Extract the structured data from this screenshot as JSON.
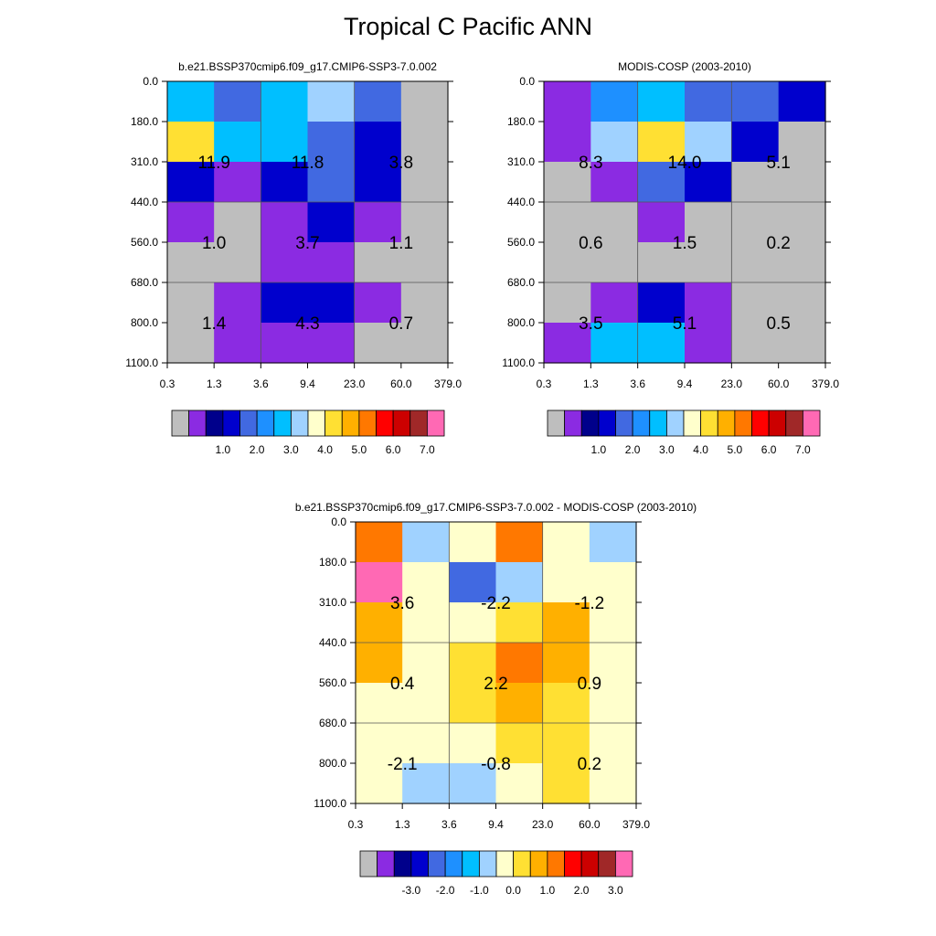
{
  "title": "Tropical C Pacific ANN",
  "colors": {
    "missing": "#bebebe",
    "abs_levels": [
      "#8b2be2",
      "#00008b",
      "#0000cd",
      "#4169e1",
      "#1e90ff",
      "#00bfff",
      "#a0d2ff",
      "#ffffcc",
      "#ffe033",
      "#ffb000",
      "#ff7800",
      "#ff0000",
      "#cc0000",
      "#a02828",
      "#ff69b4"
    ],
    "diff_levels": [
      "#8b2be2",
      "#00008b",
      "#0000cd",
      "#4169e1",
      "#1e90ff",
      "#00bfff",
      "#a0d2ff",
      "#ffffcc",
      "#ffe033",
      "#ffb000",
      "#ff7800",
      "#ff0000",
      "#cc0000",
      "#a02828",
      "#ff69b4"
    ]
  },
  "chart_data": [
    {
      "id": "model",
      "type": "heatmap",
      "title": "b.e21.BSSP370cmip6.f09_g17.CMIP6-SSP3-7.0.002",
      "xlabel": "",
      "ylabel": "",
      "x_edges": [
        "0.3",
        "1.3",
        "3.6",
        "9.4",
        "23.0",
        "60.0",
        "379.0"
      ],
      "y_edges": [
        "0.0",
        "180.0",
        "310.0",
        "440.0",
        "560.0",
        "680.0",
        "800.0",
        "1100.0"
      ],
      "values": [
        [
          3.2,
          2.1,
          3.2,
          3.6,
          2.1,
          null
        ],
        [
          4.5,
          3.2,
          3.2,
          2.1,
          1.6,
          null
        ],
        [
          1.6,
          0.9,
          1.6,
          2.1,
          1.6,
          null
        ],
        [
          0.9,
          null,
          0.9,
          1.6,
          0.9,
          null
        ],
        [
          null,
          null,
          0.9,
          0.9,
          null,
          null
        ],
        [
          null,
          0.9,
          1.6,
          1.6,
          0.9,
          null
        ],
        [
          null,
          0.9,
          0.9,
          0.9,
          null,
          null
        ]
      ],
      "block_labels": [
        {
          "text": "11.9",
          "xi": 1,
          "yi": 2
        },
        {
          "text": "11.8",
          "xi": 3,
          "yi": 2
        },
        {
          "text": "3.8",
          "xi": 5,
          "yi": 2
        },
        {
          "text": "1.0",
          "xi": 1,
          "yi": 4
        },
        {
          "text": "3.7",
          "xi": 3,
          "yi": 4
        },
        {
          "text": "1.1",
          "xi": 5,
          "yi": 4
        },
        {
          "text": "1.4",
          "xi": 1,
          "yi": 6
        },
        {
          "text": "4.3",
          "xi": 3,
          "yi": 6
        },
        {
          "text": "0.7",
          "xi": 5,
          "yi": 6
        }
      ],
      "colorbar_ticks": [
        "1.0",
        "2.0",
        "3.0",
        "4.0",
        "5.0",
        "6.0",
        "7.0"
      ]
    },
    {
      "id": "obs",
      "type": "heatmap",
      "title": "MODIS-COSP (2003-2010)",
      "xlabel": "",
      "ylabel": "",
      "x_edges": [
        "0.3",
        "1.3",
        "3.6",
        "9.4",
        "23.0",
        "60.0",
        "379.0"
      ],
      "y_edges": [
        "0.0",
        "180.0",
        "310.0",
        "440.0",
        "560.0",
        "680.0",
        "800.0",
        "1100.0"
      ],
      "values": [
        [
          0.9,
          2.6,
          3.2,
          2.1,
          2.1,
          1.6
        ],
        [
          0.9,
          3.6,
          4.5,
          3.6,
          1.6,
          null
        ],
        [
          null,
          0.9,
          2.1,
          1.6,
          null,
          null
        ],
        [
          null,
          null,
          0.9,
          null,
          null,
          null
        ],
        [
          null,
          null,
          null,
          null,
          null,
          null
        ],
        [
          null,
          0.9,
          1.6,
          0.9,
          null,
          null
        ],
        [
          0.9,
          3.2,
          3.2,
          0.9,
          null,
          null
        ]
      ],
      "block_labels": [
        {
          "text": "8.3",
          "xi": 1,
          "yi": 2
        },
        {
          "text": "14.0",
          "xi": 3,
          "yi": 2
        },
        {
          "text": "5.1",
          "xi": 5,
          "yi": 2
        },
        {
          "text": "0.6",
          "xi": 1,
          "yi": 4
        },
        {
          "text": "1.5",
          "xi": 3,
          "yi": 4
        },
        {
          "text": "0.2",
          "xi": 5,
          "yi": 4
        },
        {
          "text": "3.5",
          "xi": 1,
          "yi": 6
        },
        {
          "text": "5.1",
          "xi": 3,
          "yi": 6
        },
        {
          "text": "0.5",
          "xi": 5,
          "yi": 6
        }
      ],
      "colorbar_ticks": [
        "1.0",
        "2.0",
        "3.0",
        "4.0",
        "5.0",
        "6.0",
        "7.0"
      ]
    },
    {
      "id": "diff",
      "type": "heatmap",
      "title": "b.e21.BSSP370cmip6.f09_g17.CMIP6-SSP3-7.0.002 - MODIS-COSP (2003-2010)",
      "xlabel": "",
      "ylabel": "",
      "x_edges": [
        "0.3",
        "1.3",
        "3.6",
        "9.4",
        "23.0",
        "60.0",
        "379.0"
      ],
      "y_edges": [
        "0.0",
        "180.0",
        "310.0",
        "440.0",
        "560.0",
        "680.0",
        "800.0",
        "1100.0"
      ],
      "values": [
        [
          1.2,
          -0.7,
          -0.3,
          1.2,
          -0.3,
          -0.7
        ],
        [
          3.6,
          -0.5,
          -2.4,
          -0.7,
          -0.3,
          -0.3
        ],
        [
          0.7,
          -0.3,
          -0.3,
          0.2,
          0.7,
          -0.3
        ],
        [
          0.7,
          -0.3,
          0.2,
          1.2,
          0.7,
          -0.3
        ],
        [
          -0.3,
          -0.3,
          0.2,
          0.7,
          0.2,
          -0.3
        ],
        [
          -0.3,
          -0.3,
          -0.3,
          0.2,
          0.2,
          -0.3
        ],
        [
          -0.3,
          -0.7,
          -0.7,
          -0.3,
          0.2,
          -0.3
        ]
      ],
      "block_labels": [
        {
          "text": "3.6",
          "xi": 1,
          "yi": 2
        },
        {
          "text": "-2.2",
          "xi": 3,
          "yi": 2
        },
        {
          "text": "-1.2",
          "xi": 5,
          "yi": 2
        },
        {
          "text": "0.4",
          "xi": 1,
          "yi": 4
        },
        {
          "text": "2.2",
          "xi": 3,
          "yi": 4
        },
        {
          "text": "0.9",
          "xi": 5,
          "yi": 4
        },
        {
          "text": "-2.1",
          "xi": 1,
          "yi": 6
        },
        {
          "text": "-0.8",
          "xi": 3,
          "yi": 6
        },
        {
          "text": "0.2",
          "xi": 5,
          "yi": 6
        }
      ],
      "colorbar_ticks": [
        "-3.0",
        "-2.0",
        "-1.0",
        "0.0",
        "1.0",
        "2.0",
        "3.0"
      ]
    }
  ]
}
